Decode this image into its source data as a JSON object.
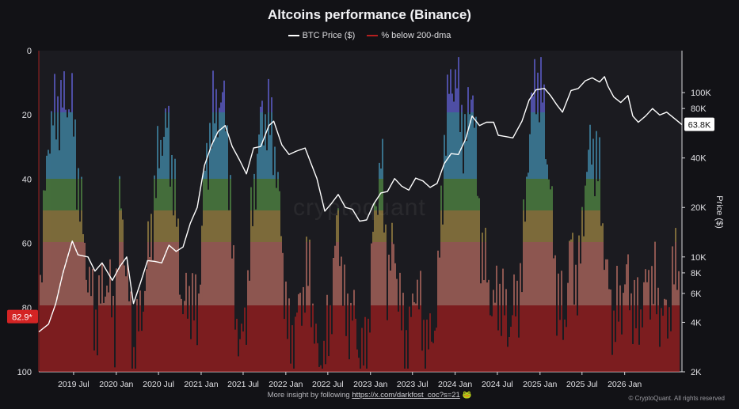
{
  "title": "Altcoins performance (Binance)",
  "legend": [
    {
      "label": "BTC Price ($)",
      "color": "#ffffff"
    },
    {
      "label": "% below 200-dma",
      "color": "#b51f1f"
    }
  ],
  "footer": {
    "text": "More insight by following",
    "link": "https://x.com/darkfost_coc?s=21",
    "emoji": "🐸",
    "credit": "© CryptoQuant. All rights reserved"
  },
  "watermark": "cryptoquant",
  "chart_data": {
    "type": "line",
    "x_axis": {
      "tick_labels": [
        "2019 Jul",
        "2020 Jan",
        "2020 Jul",
        "2021 Jan",
        "2021 Jul",
        "2022 Jan",
        "2022 Jul",
        "2023 Jan",
        "2023 Jul",
        "2024 Jan",
        "2024 Jul",
        "2025 Jan",
        "2025 Jul",
        "2026 Jan"
      ],
      "tick_dates": [
        "2019-07-01",
        "2020-01-01",
        "2020-07-01",
        "2021-01-01",
        "2021-07-01",
        "2022-01-01",
        "2022-07-01",
        "2023-01-01",
        "2023-07-01",
        "2024-01-01",
        "2024-07-01",
        "2025-01-01",
        "2025-07-01",
        "2026-01-01"
      ],
      "range": [
        "2019-02-01",
        "2026-09-05"
      ]
    },
    "y_left": {
      "label": "",
      "range": [
        0,
        100
      ],
      "inverted": true,
      "ticks": [
        0,
        20,
        40,
        60,
        80,
        100
      ]
    },
    "y_right": {
      "label": "Price ($)",
      "scale": "log",
      "range": [
        2000,
        180000
      ],
      "ticks": [
        2000,
        4000,
        6000,
        8000,
        10000,
        20000,
        40000,
        80000,
        100000
      ],
      "tick_labels": [
        "2K",
        "4K",
        "6K",
        "8K",
        "10K",
        "20K",
        "40K",
        "80K",
        "100K"
      ]
    },
    "color_bands": [
      {
        "from": 0,
        "to": 20,
        "color": "#6d6df2"
      },
      {
        "from": 20,
        "to": 40,
        "color": "#4aa3c8"
      },
      {
        "from": 40,
        "to": 50,
        "color": "#5e9e4c"
      },
      {
        "from": 50,
        "to": 60,
        "color": "#b49a4a"
      },
      {
        "from": 60,
        "to": 80,
        "color": "#d07a6c"
      },
      {
        "from": 80,
        "to": 100,
        "color": "#b51f1f"
      }
    ],
    "current_values": {
      "pct_below": 82.9,
      "pct_label": "82.9*",
      "btc_price_label": "63.8K"
    },
    "series": [
      {
        "name": "BTC Price ($)",
        "axis": "right",
        "color": "#ffffff",
        "points": [
          [
            "2019-02-01",
            3500
          ],
          [
            "2019-03-15",
            3900
          ],
          [
            "2019-04-15",
            5200
          ],
          [
            "2019-05-15",
            7900
          ],
          [
            "2019-06-25",
            12500
          ],
          [
            "2019-07-20",
            10300
          ],
          [
            "2019-09-01",
            10000
          ],
          [
            "2019-10-01",
            8200
          ],
          [
            "2019-11-01",
            9200
          ],
          [
            "2019-12-15",
            7200
          ],
          [
            "2020-01-15",
            8700
          ],
          [
            "2020-02-15",
            10000
          ],
          [
            "2020-03-15",
            5200
          ],
          [
            "2020-04-15",
            7000
          ],
          [
            "2020-05-15",
            9500
          ],
          [
            "2020-06-15",
            9400
          ],
          [
            "2020-07-15",
            9200
          ],
          [
            "2020-08-15",
            11800
          ],
          [
            "2020-09-15",
            10800
          ],
          [
            "2020-10-15",
            11500
          ],
          [
            "2020-11-15",
            16000
          ],
          [
            "2020-12-15",
            20000
          ],
          [
            "2021-01-15",
            36000
          ],
          [
            "2021-02-15",
            48000
          ],
          [
            "2021-03-15",
            58000
          ],
          [
            "2021-04-15",
            63000
          ],
          [
            "2021-05-15",
            47000
          ],
          [
            "2021-06-15",
            39000
          ],
          [
            "2021-07-15",
            32000
          ],
          [
            "2021-08-15",
            46000
          ],
          [
            "2021-09-15",
            47000
          ],
          [
            "2021-10-20",
            63000
          ],
          [
            "2021-11-10",
            67000
          ],
          [
            "2021-12-15",
            48000
          ],
          [
            "2022-01-15",
            42000
          ],
          [
            "2022-02-15",
            44000
          ],
          [
            "2022-03-25",
            46000
          ],
          [
            "2022-05-15",
            30000
          ],
          [
            "2022-06-18",
            19000
          ],
          [
            "2022-07-15",
            21000
          ],
          [
            "2022-08-15",
            24000
          ],
          [
            "2022-09-15",
            20000
          ],
          [
            "2022-10-15",
            19500
          ],
          [
            "2022-11-15",
            16500
          ],
          [
            "2022-12-15",
            16800
          ],
          [
            "2023-01-15",
            21000
          ],
          [
            "2023-02-15",
            24500
          ],
          [
            "2023-03-15",
            25000
          ],
          [
            "2023-04-15",
            30000
          ],
          [
            "2023-05-15",
            27000
          ],
          [
            "2023-06-15",
            25500
          ],
          [
            "2023-07-15",
            30200
          ],
          [
            "2023-08-15",
            29000
          ],
          [
            "2023-09-15",
            26500
          ],
          [
            "2023-10-15",
            28000
          ],
          [
            "2023-11-15",
            37000
          ],
          [
            "2023-12-15",
            42500
          ],
          [
            "2024-01-15",
            42000
          ],
          [
            "2024-02-15",
            52000
          ],
          [
            "2024-03-14",
            72000
          ],
          [
            "2024-04-15",
            63000
          ],
          [
            "2024-05-15",
            66000
          ],
          [
            "2024-06-15",
            66000
          ],
          [
            "2024-07-05",
            55000
          ],
          [
            "2024-08-05",
            54000
          ],
          [
            "2024-09-06",
            53000
          ],
          [
            "2024-10-15",
            67000
          ],
          [
            "2024-11-15",
            90000
          ],
          [
            "2024-12-15",
            104000
          ],
          [
            "2025-01-20",
            106000
          ],
          [
            "2025-02-15",
            96000
          ],
          [
            "2025-03-15",
            84000
          ],
          [
            "2025-04-08",
            76000
          ],
          [
            "2025-05-15",
            103000
          ],
          [
            "2025-06-15",
            106000
          ],
          [
            "2025-07-15",
            118000
          ],
          [
            "2025-08-14",
            123000
          ],
          [
            "2025-09-15",
            116000
          ],
          [
            "2025-10-06",
            125000
          ],
          [
            "2025-10-20",
            110000
          ],
          [
            "2025-11-15",
            94000
          ],
          [
            "2025-12-15",
            87000
          ],
          [
            "2026-01-15",
            96000
          ],
          [
            "2026-02-05",
            72000
          ],
          [
            "2026-03-01",
            66000
          ],
          [
            "2026-04-01",
            72000
          ],
          [
            "2026-05-01",
            80000
          ],
          [
            "2026-06-01",
            73000
          ],
          [
            "2026-07-01",
            76000
          ],
          [
            "2026-08-01",
            70000
          ],
          [
            "2026-09-05",
            63800
          ]
        ]
      },
      {
        "name": "% below 200-dma",
        "axis": "left",
        "style": "spikes",
        "points": [
          [
            "2019-02-01",
            82
          ],
          [
            "2019-03-15",
            25
          ],
          [
            "2019-05-01",
            17
          ],
          [
            "2019-06-20",
            15
          ],
          [
            "2019-08-15",
            60
          ],
          [
            "2019-10-01",
            85
          ],
          [
            "2019-11-20",
            70
          ],
          [
            "2019-12-25",
            85
          ],
          [
            "2020-01-20",
            45
          ],
          [
            "2020-03-15",
            96
          ],
          [
            "2020-05-01",
            75
          ],
          [
            "2020-06-15",
            45
          ],
          [
            "2020-07-15",
            25
          ],
          [
            "2020-08-15",
            25
          ],
          [
            "2020-09-20",
            55
          ],
          [
            "2020-10-15",
            82
          ],
          [
            "2020-11-15",
            75
          ],
          [
            "2020-12-15",
            85
          ],
          [
            "2021-01-15",
            40
          ],
          [
            "2021-02-15",
            22
          ],
          [
            "2021-03-15",
            16
          ],
          [
            "2021-04-20",
            18
          ],
          [
            "2021-05-20",
            72
          ],
          [
            "2021-06-20",
            95
          ],
          [
            "2021-07-20",
            75
          ],
          [
            "2021-08-15",
            45
          ],
          [
            "2021-09-15",
            22
          ],
          [
            "2021-10-15",
            20
          ],
          [
            "2021-11-15",
            30
          ],
          [
            "2021-12-15",
            60
          ],
          [
            "2022-01-15",
            92
          ],
          [
            "2022-02-15",
            85
          ],
          [
            "2022-03-15",
            75
          ],
          [
            "2022-04-15",
            68
          ],
          [
            "2022-05-15",
            96
          ],
          [
            "2022-06-15",
            98
          ],
          [
            "2022-07-15",
            80
          ],
          [
            "2022-08-15",
            50
          ],
          [
            "2022-09-15",
            85
          ],
          [
            "2022-10-15",
            80
          ],
          [
            "2022-11-15",
            95
          ],
          [
            "2022-12-15",
            96
          ],
          [
            "2023-01-15",
            55
          ],
          [
            "2023-02-15",
            32
          ],
          [
            "2023-03-15",
            70
          ],
          [
            "2023-04-15",
            60
          ],
          [
            "2023-05-15",
            85
          ],
          [
            "2023-06-15",
            92
          ],
          [
            "2023-07-15",
            70
          ],
          [
            "2023-08-15",
            88
          ],
          [
            "2023-09-15",
            92
          ],
          [
            "2023-10-15",
            80
          ],
          [
            "2023-11-15",
            30
          ],
          [
            "2023-12-15",
            7
          ],
          [
            "2024-01-15",
            12
          ],
          [
            "2024-02-15",
            30
          ],
          [
            "2024-03-15",
            7
          ],
          [
            "2024-04-15",
            55
          ],
          [
            "2024-05-15",
            70
          ],
          [
            "2024-06-15",
            80
          ],
          [
            "2024-07-15",
            75
          ],
          [
            "2024-08-15",
            86
          ],
          [
            "2024-09-15",
            80
          ],
          [
            "2024-10-15",
            70
          ],
          [
            "2024-11-15",
            25
          ],
          [
            "2024-12-15",
            8
          ],
          [
            "2025-01-15",
            15
          ],
          [
            "2025-02-15",
            45
          ],
          [
            "2025-03-15",
            75
          ],
          [
            "2025-04-15",
            86
          ],
          [
            "2025-05-15",
            60
          ],
          [
            "2025-06-15",
            75
          ],
          [
            "2025-07-15",
            40
          ],
          [
            "2025-08-15",
            28
          ],
          [
            "2025-09-15",
            40
          ],
          [
            "2025-10-15",
            70
          ],
          [
            "2025-11-15",
            85
          ],
          [
            "2025-12-15",
            78
          ],
          [
            "2026-01-15",
            70
          ],
          [
            "2026-02-15",
            84
          ],
          [
            "2026-03-15",
            80
          ],
          [
            "2026-04-15",
            70
          ],
          [
            "2026-05-15",
            75
          ],
          [
            "2026-06-15",
            84
          ],
          [
            "2026-07-15",
            80
          ],
          [
            "2026-08-15",
            62
          ],
          [
            "2026-09-05",
            82.9
          ]
        ]
      }
    ]
  }
}
